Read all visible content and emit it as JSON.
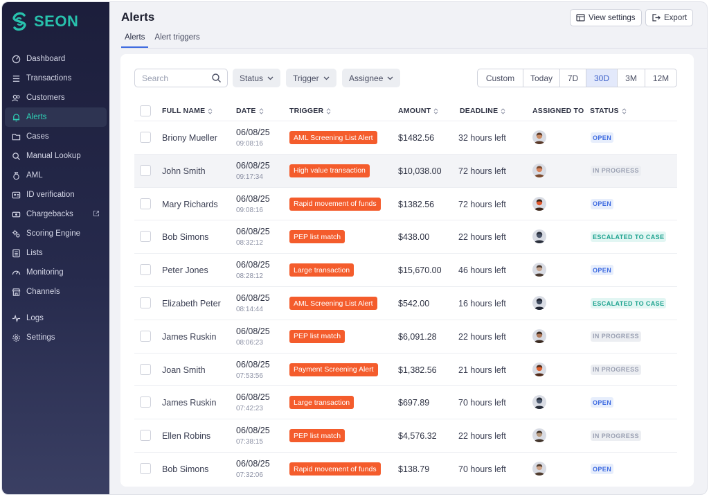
{
  "app": {
    "name": "SEON",
    "brand_color": "#28c1ad"
  },
  "sidebar": {
    "items": [
      {
        "label": "Dashboard",
        "icon": "dashboard-icon"
      },
      {
        "label": "Transactions",
        "icon": "list-icon"
      },
      {
        "label": "Customers",
        "icon": "users-icon"
      },
      {
        "label": "Alerts",
        "icon": "bell-icon",
        "active": true
      },
      {
        "label": "Cases",
        "icon": "folder-icon"
      },
      {
        "label": "Manual Lookup",
        "icon": "search-icon"
      },
      {
        "label": "AML",
        "icon": "bag-icon"
      },
      {
        "label": "ID verification",
        "icon": "id-card-icon"
      },
      {
        "label": "Chargebacks",
        "icon": "money-icon",
        "external": true
      },
      {
        "label": "Scoring Engine",
        "icon": "gears-icon"
      },
      {
        "label": "Lists",
        "icon": "lists-icon"
      },
      {
        "label": "Monitoring",
        "icon": "gauge-icon"
      },
      {
        "label": "Channels",
        "icon": "store-icon"
      }
    ],
    "bottom_items": [
      {
        "label": "Logs",
        "icon": "pulse-icon"
      },
      {
        "label": "Settings",
        "icon": "gear-icon"
      }
    ]
  },
  "header": {
    "title": "Alerts",
    "tabs": [
      "Alerts",
      "Alert triggers"
    ],
    "view_settings": "View settings",
    "export": "Export"
  },
  "filters": {
    "search_placeholder": "Search",
    "status": "Status",
    "trigger": "Trigger",
    "assignee": "Assignee",
    "ranges": [
      "Custom",
      "Today",
      "7D",
      "30D",
      "3M",
      "12M"
    ],
    "active_range": "30D"
  },
  "table": {
    "columns": [
      "FULL NAME",
      "DATE",
      "TRIGGER",
      "AMOUNT",
      "DEADLINE",
      "ASSIGNED TO",
      "STATUS"
    ],
    "rows": [
      {
        "name": "Briony Mueller",
        "date": "06/08/25",
        "time": "09:08:16",
        "trigger": "AML Screening List Alert",
        "amount": "$1482.56",
        "deadline": "32 hours left",
        "status": "OPEN"
      },
      {
        "name": "John Smith",
        "date": "06/08/25",
        "time": "09:17:34",
        "trigger": "High value transaction",
        "amount": "$10,038.00",
        "deadline": "72 hours left",
        "status": "IN PROGRESS"
      },
      {
        "name": "Mary Richards",
        "date": "06/08/25",
        "time": "09:08:16",
        "trigger": "Rapid movement of funds",
        "amount": "$1382.56",
        "deadline": "72 hours left",
        "status": "OPEN"
      },
      {
        "name": "Bob Simons",
        "date": "06/08/25",
        "time": "08:32:12",
        "trigger": "PEP list match",
        "amount": "$438.00",
        "deadline": "22 hours left",
        "status": "ESCALATED TO CASE"
      },
      {
        "name": "Peter Jones",
        "date": "06/08/25",
        "time": "08:28:12",
        "trigger": "Large transaction",
        "amount": "$15,670.00",
        "deadline": "46 hours left",
        "status": "OPEN"
      },
      {
        "name": "Elizabeth Peter",
        "date": "06/08/25",
        "time": "08:14:44",
        "trigger": "AML Screening List Alert",
        "amount": "$542.00",
        "deadline": "16 hours left",
        "status": "ESCALATED TO CASE"
      },
      {
        "name": "James Ruskin",
        "date": "06/08/25",
        "time": "08:06:23",
        "trigger": "PEP list match",
        "amount": "$6,091.28",
        "deadline": "22 hours left",
        "status": "IN PROGRESS"
      },
      {
        "name": "Joan Smith",
        "date": "06/08/25",
        "time": "07:53:56",
        "trigger": "Payment Screening Alert",
        "amount": "$1,382.56",
        "deadline": "21 hours left",
        "status": "IN PROGRESS"
      },
      {
        "name": "James Ruskin",
        "date": "06/08/25",
        "time": "07:42:23",
        "trigger": "Large transaction",
        "amount": "$697.89",
        "deadline": "70 hours left",
        "status": "OPEN"
      },
      {
        "name": "Ellen Robins",
        "date": "06/08/25",
        "time": "07:38:15",
        "trigger": "PEP list match",
        "amount": "$4,576.32",
        "deadline": "22 hours left",
        "status": "IN PROGRESS"
      },
      {
        "name": "Bob Simons",
        "date": "06/08/25",
        "time": "07:32:06",
        "trigger": "Rapid movement of funds",
        "amount": "$138.79",
        "deadline": "70 hours left",
        "status": "OPEN"
      }
    ]
  },
  "colors": {
    "trigger_tag": "#f45c2c",
    "active_accent": "#3d6ae0",
    "status_open": "#3d6ae0",
    "status_escalated": "#1ea38f",
    "status_in_progress": "#9aa0b2"
  }
}
